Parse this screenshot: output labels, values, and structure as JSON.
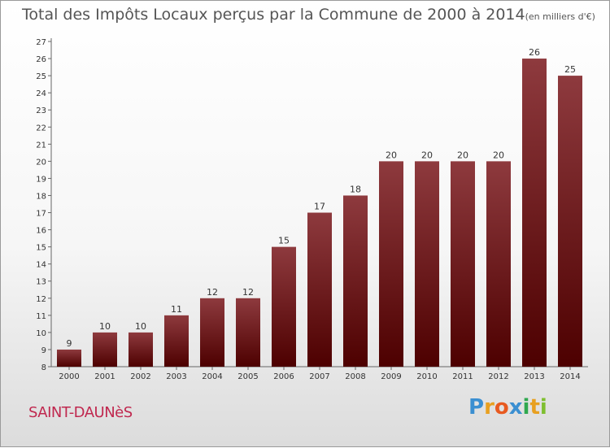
{
  "title": {
    "main": "Total des Impôts Locaux perçus par la Commune de 2000 à 2014",
    "unit": "(en milliers d'€)"
  },
  "commune": "SAINT-DAUNèS",
  "logo": {
    "letters": [
      "P",
      "r",
      "o",
      "x",
      "i",
      "t",
      "i"
    ],
    "colors": [
      "#3b8fd1",
      "#e8a020",
      "#e85a20",
      "#3b8fd1",
      "#2fa84f",
      "#e8a020",
      "#7fbf30"
    ]
  },
  "colors": {
    "bar_top": "#8e3a3e",
    "bar_bottom": "#4d0000"
  },
  "chart_data": {
    "type": "bar",
    "title": "Total des Impôts Locaux perçus par la Commune de 2000 à 2014",
    "categories": [
      "2000",
      "2001",
      "2002",
      "2003",
      "2004",
      "2005",
      "2006",
      "2007",
      "2008",
      "2009",
      "2010",
      "2011",
      "2012",
      "2013",
      "2014"
    ],
    "values": [
      9,
      10,
      10,
      11,
      12,
      12,
      15,
      17,
      18,
      20,
      20,
      20,
      20,
      26,
      25
    ],
    "ylim": [
      8,
      27
    ],
    "yticks": [
      8,
      9,
      10,
      11,
      12,
      13,
      14,
      15,
      16,
      17,
      18,
      19,
      20,
      21,
      22,
      23,
      24,
      25,
      26,
      27
    ],
    "xlabel": "",
    "ylabel": "",
    "grid": false
  }
}
